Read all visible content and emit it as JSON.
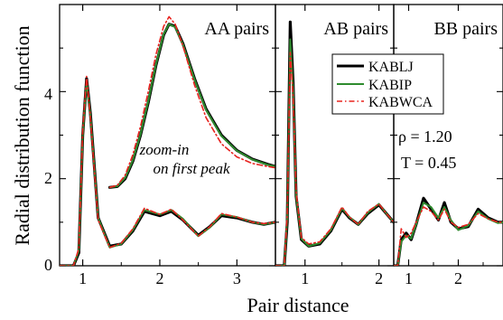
{
  "figure": {
    "ylabel": "Radial distribution function",
    "xlabel": "Pair distance",
    "y_ticks": [
      "0",
      "2",
      "4"
    ],
    "legend": [
      {
        "label": "KABLJ",
        "color": "#000000",
        "dash": "solid"
      },
      {
        "label": "KABIP",
        "color": "#2e8b2e",
        "dash": "solid"
      },
      {
        "label": "KABWCA",
        "color": "#e8231f",
        "dash": "dashdot"
      }
    ],
    "annotation_zoom_line1": "zoom-in",
    "annotation_zoom_line2": "on first peak",
    "annotation_rho": "ρ = 1.20",
    "annotation_T": "T = 0.45",
    "colors": {
      "KABLJ": "#000000",
      "KABIP": "#2e8b2e",
      "KABWCA": "#e8231f"
    }
  },
  "chart_data": [
    {
      "type": "line",
      "title": "AA pairs",
      "xlim": [
        0.7,
        3.5
      ],
      "ylim": [
        0,
        6
      ],
      "x_ticks": [
        1,
        2,
        3
      ],
      "y_ticks": [
        0,
        2,
        4
      ],
      "series": [
        {
          "name": "KABLJ",
          "x": [
            0.7,
            0.88,
            0.95,
            1.0,
            1.05,
            1.1,
            1.2,
            1.35,
            1.5,
            1.65,
            1.8,
            2.0,
            2.15,
            2.3,
            2.5,
            2.65,
            2.8,
            3.0,
            3.2,
            3.35,
            3.5
          ],
          "y": [
            0,
            0,
            0.3,
            3.0,
            4.3,
            3.5,
            1.1,
            0.45,
            0.5,
            0.8,
            1.25,
            1.15,
            1.25,
            1.05,
            0.7,
            0.9,
            1.15,
            1.1,
            1.0,
            0.95,
            1.0
          ]
        },
        {
          "name": "KABIP",
          "x": [
            0.7,
            0.88,
            0.95,
            1.0,
            1.05,
            1.1,
            1.2,
            1.35,
            1.5,
            1.65,
            1.8,
            2.0,
            2.15,
            2.3,
            2.5,
            2.65,
            2.8,
            3.0,
            3.2,
            3.35,
            3.5
          ],
          "y": [
            0,
            0,
            0.35,
            3.0,
            4.25,
            3.45,
            1.1,
            0.42,
            0.5,
            0.82,
            1.28,
            1.18,
            1.28,
            1.08,
            0.68,
            0.88,
            1.18,
            1.12,
            1.0,
            0.95,
            1.0
          ]
        },
        {
          "name": "KABWCA",
          "x": [
            0.7,
            0.88,
            0.95,
            1.0,
            1.05,
            1.1,
            1.2,
            1.35,
            1.5,
            1.65,
            1.8,
            2.0,
            2.15,
            2.3,
            2.5,
            2.65,
            2.8,
            3.0,
            3.2,
            3.35,
            3.5
          ],
          "y": [
            0,
            0,
            0.4,
            3.1,
            4.35,
            3.4,
            1.05,
            0.42,
            0.52,
            0.85,
            1.32,
            1.18,
            1.3,
            1.05,
            0.68,
            0.9,
            1.2,
            1.12,
            1.0,
            0.97,
            1.0
          ]
        }
      ],
      "inset": {
        "description": "zoom-in on first peak",
        "series": [
          {
            "name": "KABLJ",
            "x": [
              1.35,
              1.45,
              1.55,
              1.65,
              1.75,
              1.85,
              1.95,
              2.05,
              2.12,
              2.2,
              2.3,
              2.45,
              2.6,
              2.8,
              3.0,
              3.2,
              3.4,
              3.5
            ],
            "y": [
              1.8,
              1.82,
              2.0,
              2.4,
              3.0,
              3.75,
              4.6,
              5.3,
              5.55,
              5.5,
              5.1,
              4.3,
              3.6,
              3.0,
              2.65,
              2.45,
              2.33,
              2.28
            ]
          },
          {
            "name": "KABIP",
            "x": [
              1.35,
              1.45,
              1.55,
              1.65,
              1.75,
              1.85,
              1.95,
              2.05,
              2.12,
              2.2,
              2.3,
              2.45,
              2.6,
              2.8,
              3.0,
              3.2,
              3.4,
              3.5
            ],
            "y": [
              1.8,
              1.83,
              2.02,
              2.42,
              3.02,
              3.78,
              4.62,
              5.32,
              5.55,
              5.48,
              5.08,
              4.28,
              3.58,
              2.98,
              2.64,
              2.44,
              2.32,
              2.28
            ]
          },
          {
            "name": "KABWCA",
            "x": [
              1.35,
              1.45,
              1.55,
              1.65,
              1.75,
              1.85,
              1.95,
              2.05,
              2.12,
              2.2,
              2.3,
              2.45,
              2.6,
              2.8,
              3.0,
              3.2,
              3.4,
              3.5
            ],
            "y": [
              1.8,
              1.85,
              2.08,
              2.55,
              3.2,
              4.0,
              4.85,
              5.5,
              5.72,
              5.55,
              5.05,
              4.15,
              3.4,
              2.8,
              2.5,
              2.35,
              2.28,
              2.25
            ]
          }
        ]
      }
    },
    {
      "type": "line",
      "title": "AB pairs",
      "xlim": [
        0.6,
        2.2
      ],
      "ylim": [
        0,
        6
      ],
      "x_ticks": [
        1,
        2
      ],
      "series": [
        {
          "name": "KABLJ",
          "x": [
            0.6,
            0.72,
            0.76,
            0.8,
            0.84,
            0.88,
            0.95,
            1.05,
            1.2,
            1.35,
            1.5,
            1.6,
            1.72,
            1.85,
            2.0,
            2.1,
            2.2
          ],
          "y": [
            0,
            0,
            1.0,
            5.6,
            4.2,
            1.6,
            0.6,
            0.45,
            0.5,
            0.8,
            1.3,
            1.1,
            0.95,
            1.2,
            1.4,
            1.2,
            1.0
          ]
        },
        {
          "name": "KABIP",
          "x": [
            0.6,
            0.72,
            0.76,
            0.8,
            0.84,
            0.88,
            0.95,
            1.05,
            1.2,
            1.35,
            1.5,
            1.6,
            1.72,
            1.85,
            2.0,
            2.1,
            2.2
          ],
          "y": [
            0,
            0,
            1.1,
            5.2,
            4.0,
            1.6,
            0.62,
            0.45,
            0.52,
            0.82,
            1.32,
            1.12,
            0.95,
            1.22,
            1.42,
            1.2,
            1.0
          ]
        },
        {
          "name": "KABWCA",
          "x": [
            0.6,
            0.72,
            0.76,
            0.8,
            0.84,
            0.88,
            0.95,
            1.05,
            1.2,
            1.35,
            1.5,
            1.6,
            1.72,
            1.85,
            2.0,
            2.1,
            2.2
          ],
          "y": [
            0,
            0,
            1.2,
            4.9,
            3.9,
            1.7,
            0.65,
            0.5,
            0.55,
            0.85,
            1.35,
            1.12,
            0.95,
            1.25,
            1.42,
            1.2,
            1.0
          ]
        }
      ]
    },
    {
      "type": "line",
      "title": "BB pairs",
      "xlim": [
        0.7,
        2.9
      ],
      "ylim": [
        0,
        6
      ],
      "x_ticks": [
        1,
        2
      ],
      "series": [
        {
          "name": "KABLJ",
          "x": [
            0.7,
            0.78,
            0.85,
            0.95,
            1.05,
            1.15,
            1.3,
            1.45,
            1.6,
            1.72,
            1.85,
            2.0,
            2.2,
            2.4,
            2.6,
            2.8,
            2.9
          ],
          "y": [
            0,
            0,
            0.6,
            0.75,
            0.6,
            0.95,
            1.55,
            1.3,
            1.05,
            1.45,
            1.0,
            0.85,
            0.9,
            1.3,
            1.1,
            1.0,
            1.0
          ]
        },
        {
          "name": "KABIP",
          "x": [
            0.7,
            0.78,
            0.85,
            0.95,
            1.05,
            1.15,
            1.3,
            1.45,
            1.6,
            1.72,
            1.85,
            2.0,
            2.2,
            2.4,
            2.6,
            2.8,
            2.9
          ],
          "y": [
            0,
            0,
            0.55,
            0.7,
            0.62,
            0.95,
            1.45,
            1.35,
            1.1,
            1.35,
            1.05,
            0.82,
            0.92,
            1.25,
            1.08,
            0.98,
            1.0
          ]
        },
        {
          "name": "KABWCA",
          "x": [
            0.7,
            0.78,
            0.85,
            0.95,
            1.05,
            1.15,
            1.3,
            1.45,
            1.6,
            1.72,
            1.85,
            2.0,
            2.2,
            2.4,
            2.6,
            2.8,
            2.9
          ],
          "y": [
            0,
            0,
            0.85,
            0.65,
            0.75,
            1.0,
            1.35,
            1.25,
            1.05,
            1.3,
            1.0,
            0.88,
            0.95,
            1.2,
            1.08,
            1.0,
            1.0
          ]
        }
      ]
    }
  ]
}
